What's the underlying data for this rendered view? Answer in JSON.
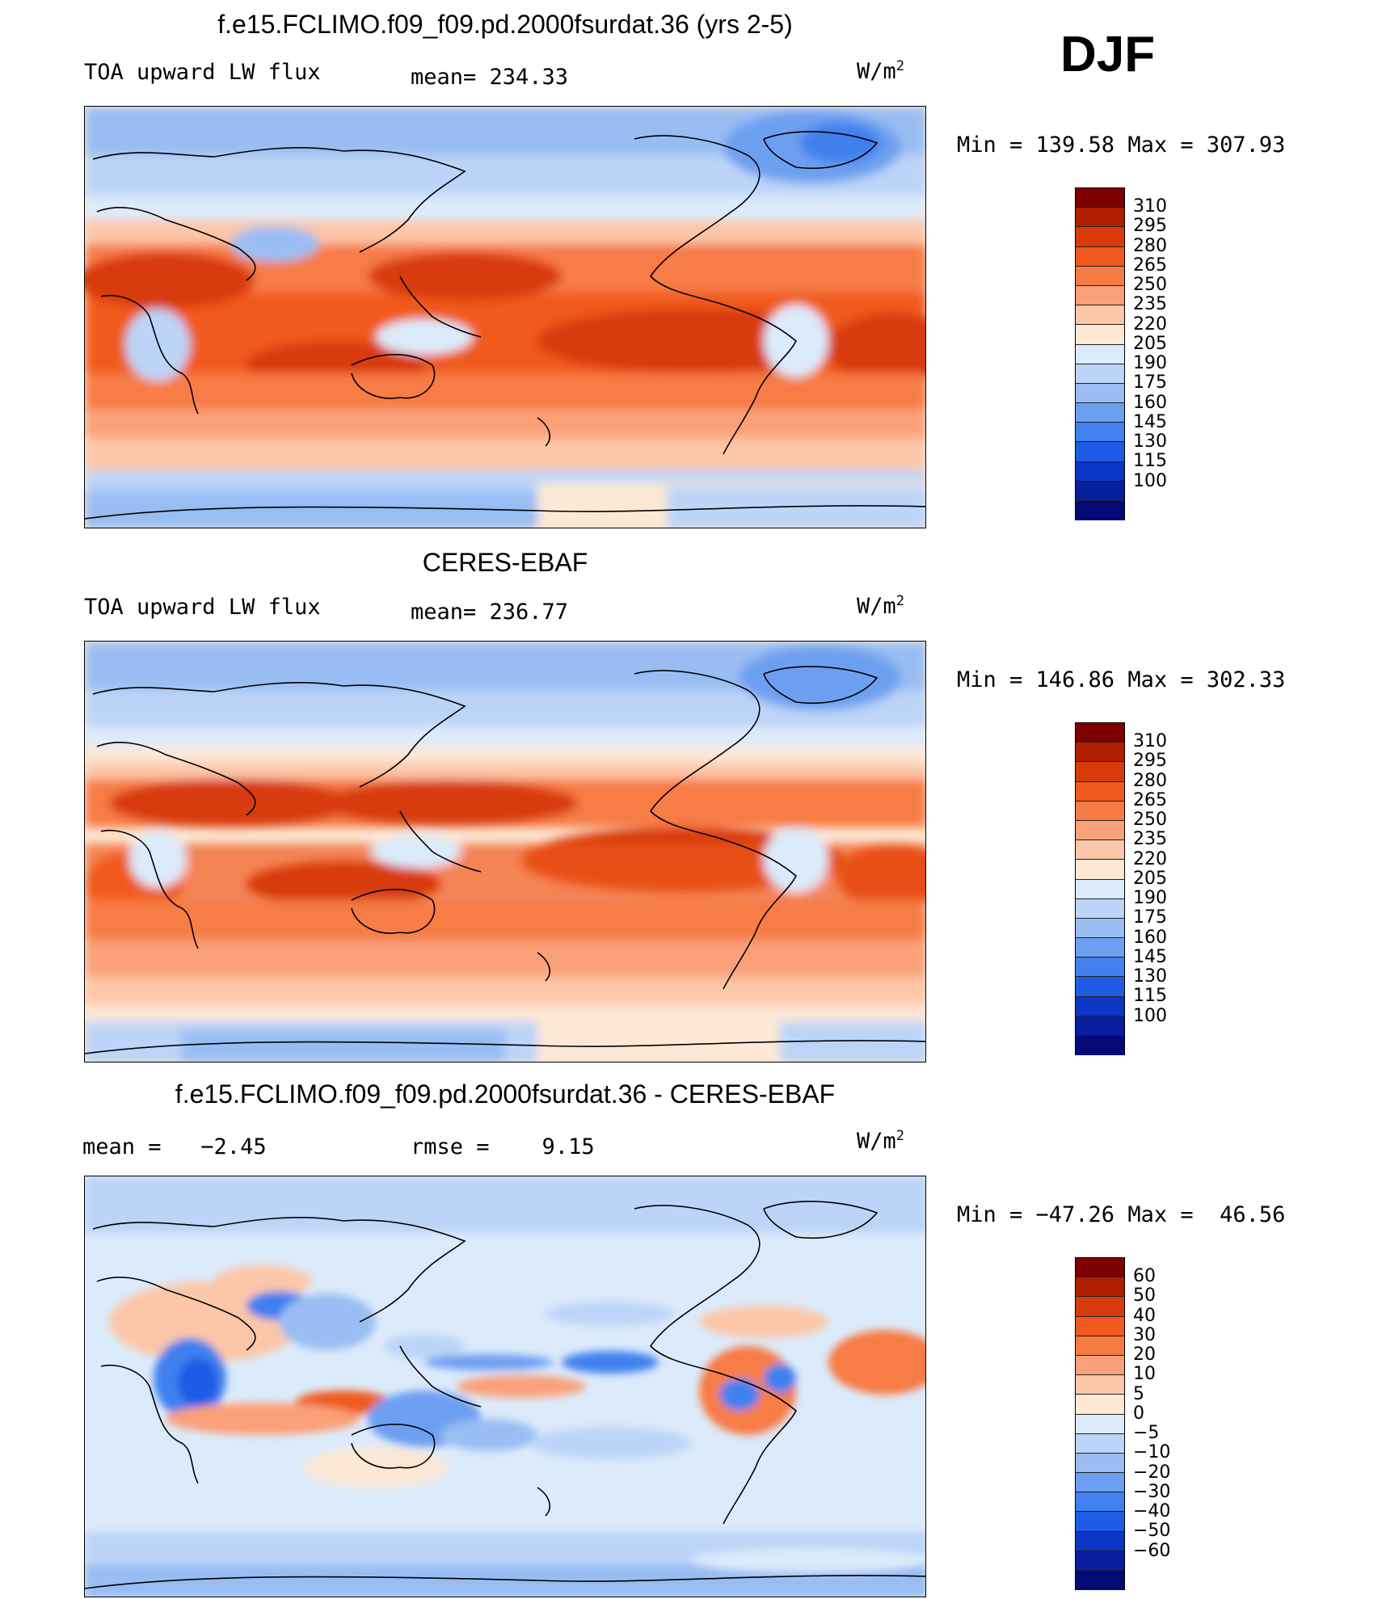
{
  "season": "DJF",
  "panels": [
    {
      "title": "f.e15.FCLIMO.f09_f09.pd.2000fsurdat.36 (yrs 2-5)",
      "left_label": "TOA upward LW flux",
      "mid_label": "mean= 234.33",
      "units_base": "W/m",
      "units_exp": "2",
      "minmax": "Min = 139.58 Max = 307.93",
      "colorbar_labels": [
        "310",
        "295",
        "280",
        "265",
        "250",
        "235",
        "220",
        "205",
        "190",
        "175",
        "160",
        "145",
        "130",
        "115",
        "100"
      ]
    },
    {
      "title": "CERES-EBAF",
      "left_label": "TOA upward LW flux",
      "mid_label": "mean= 236.77",
      "units_base": "W/m",
      "units_exp": "2",
      "minmax": "Min = 146.86 Max = 302.33",
      "colorbar_labels": [
        "310",
        "295",
        "280",
        "265",
        "250",
        "235",
        "220",
        "205",
        "190",
        "175",
        "160",
        "145",
        "130",
        "115",
        "100"
      ]
    },
    {
      "title": "f.e15.FCLIMO.f09_f09.pd.2000fsurdat.36 - CERES-EBAF",
      "left_label": "mean =   −2.45",
      "mid_label": "rmse =    9.15",
      "units_base": "W/m",
      "units_exp": "2",
      "minmax": "Min = −47.26 Max =  46.56",
      "colorbar_labels": [
        "60",
        "50",
        "40",
        "30",
        "20",
        "10",
        "5",
        "0",
        "−5",
        "−10",
        "−20",
        "−30",
        "−40",
        "−50",
        "−60"
      ]
    }
  ],
  "colorbar_colors": [
    "#7f0000",
    "#b01e00",
    "#d83a0a",
    "#f05a1e",
    "#f77b45",
    "#faa079",
    "#fcc6a8",
    "#fde8d6",
    "#dcebfb",
    "#bcd4f7",
    "#99bdf3",
    "#6d9ff0",
    "#4180ee",
    "#1f5ce6",
    "#0c36c6",
    "#081fa0",
    "#030a78"
  ],
  "colorbar_colors_diff": [
    "#7f0000",
    "#b01e00",
    "#d83a0a",
    "#f05a1e",
    "#f77b45",
    "#faa079",
    "#fcc6a8",
    "#fde8d6",
    "#dcebfb",
    "#bcd4f7",
    "#99bdf3",
    "#6d9ff0",
    "#4180ee",
    "#1f5ce6",
    "#0c36c6",
    "#081fa0",
    "#030a78"
  ]
}
